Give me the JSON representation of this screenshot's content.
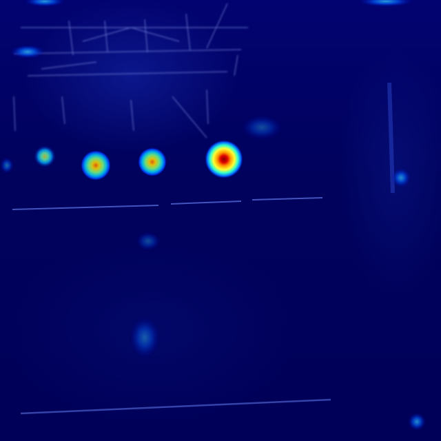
{
  "image": {
    "kind": "attention-heatmap",
    "colormap": "jet",
    "background_color": "#00005a",
    "hotspot_colors": {
      "low": "#0000ff",
      "mid": "#00ffff",
      "high": "#ffff00",
      "peak": "#b00000"
    },
    "hotspots": [
      {
        "label": "",
        "intensity": 0.55
      },
      {
        "label": "",
        "intensity": 0.7
      },
      {
        "label": "",
        "intensity": 0.72
      },
      {
        "label": "",
        "intensity": 1.0
      },
      {
        "label": "",
        "intensity": 0.3
      },
      {
        "label": "",
        "intensity": 0.28
      }
    ]
  }
}
